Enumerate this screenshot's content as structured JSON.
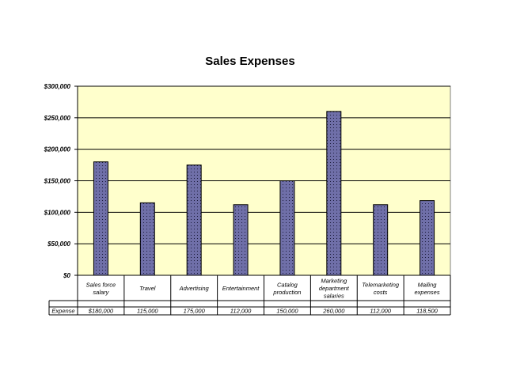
{
  "chart_data": {
    "type": "bar",
    "title": "Sales Expenses",
    "series_name": "Expense",
    "categories": [
      [
        "Sales force",
        "salary"
      ],
      [
        "Travel"
      ],
      [
        "Advertising"
      ],
      [
        "Entertainment"
      ],
      [
        "Catalog",
        "production"
      ],
      [
        "Marketing",
        "department",
        "salaries"
      ],
      [
        "Telemarketing",
        "costs"
      ],
      [
        "Mailing",
        "expenses"
      ]
    ],
    "values": [
      180000,
      115000,
      175000,
      112000,
      150000,
      260000,
      112000,
      118500
    ],
    "value_labels": [
      "$180,000",
      "115,000",
      "175,000",
      "112,000",
      "150,000",
      "260,000",
      "112,000",
      "118,500"
    ],
    "ylim": [
      0,
      300000
    ],
    "yticks": [
      0,
      50000,
      100000,
      150000,
      200000,
      250000,
      300000
    ],
    "ytick_labels": [
      "$0",
      "$50,000",
      "$100,000",
      "$150,000",
      "$200,000",
      "$250,000",
      "$300,000"
    ],
    "grid": true,
    "xlabel": "",
    "ylabel": "",
    "colors": {
      "plot_bg": "#ffffcc",
      "bar": "#6f6fa8",
      "bar_edge": "#000000",
      "grid": "#000000"
    }
  }
}
